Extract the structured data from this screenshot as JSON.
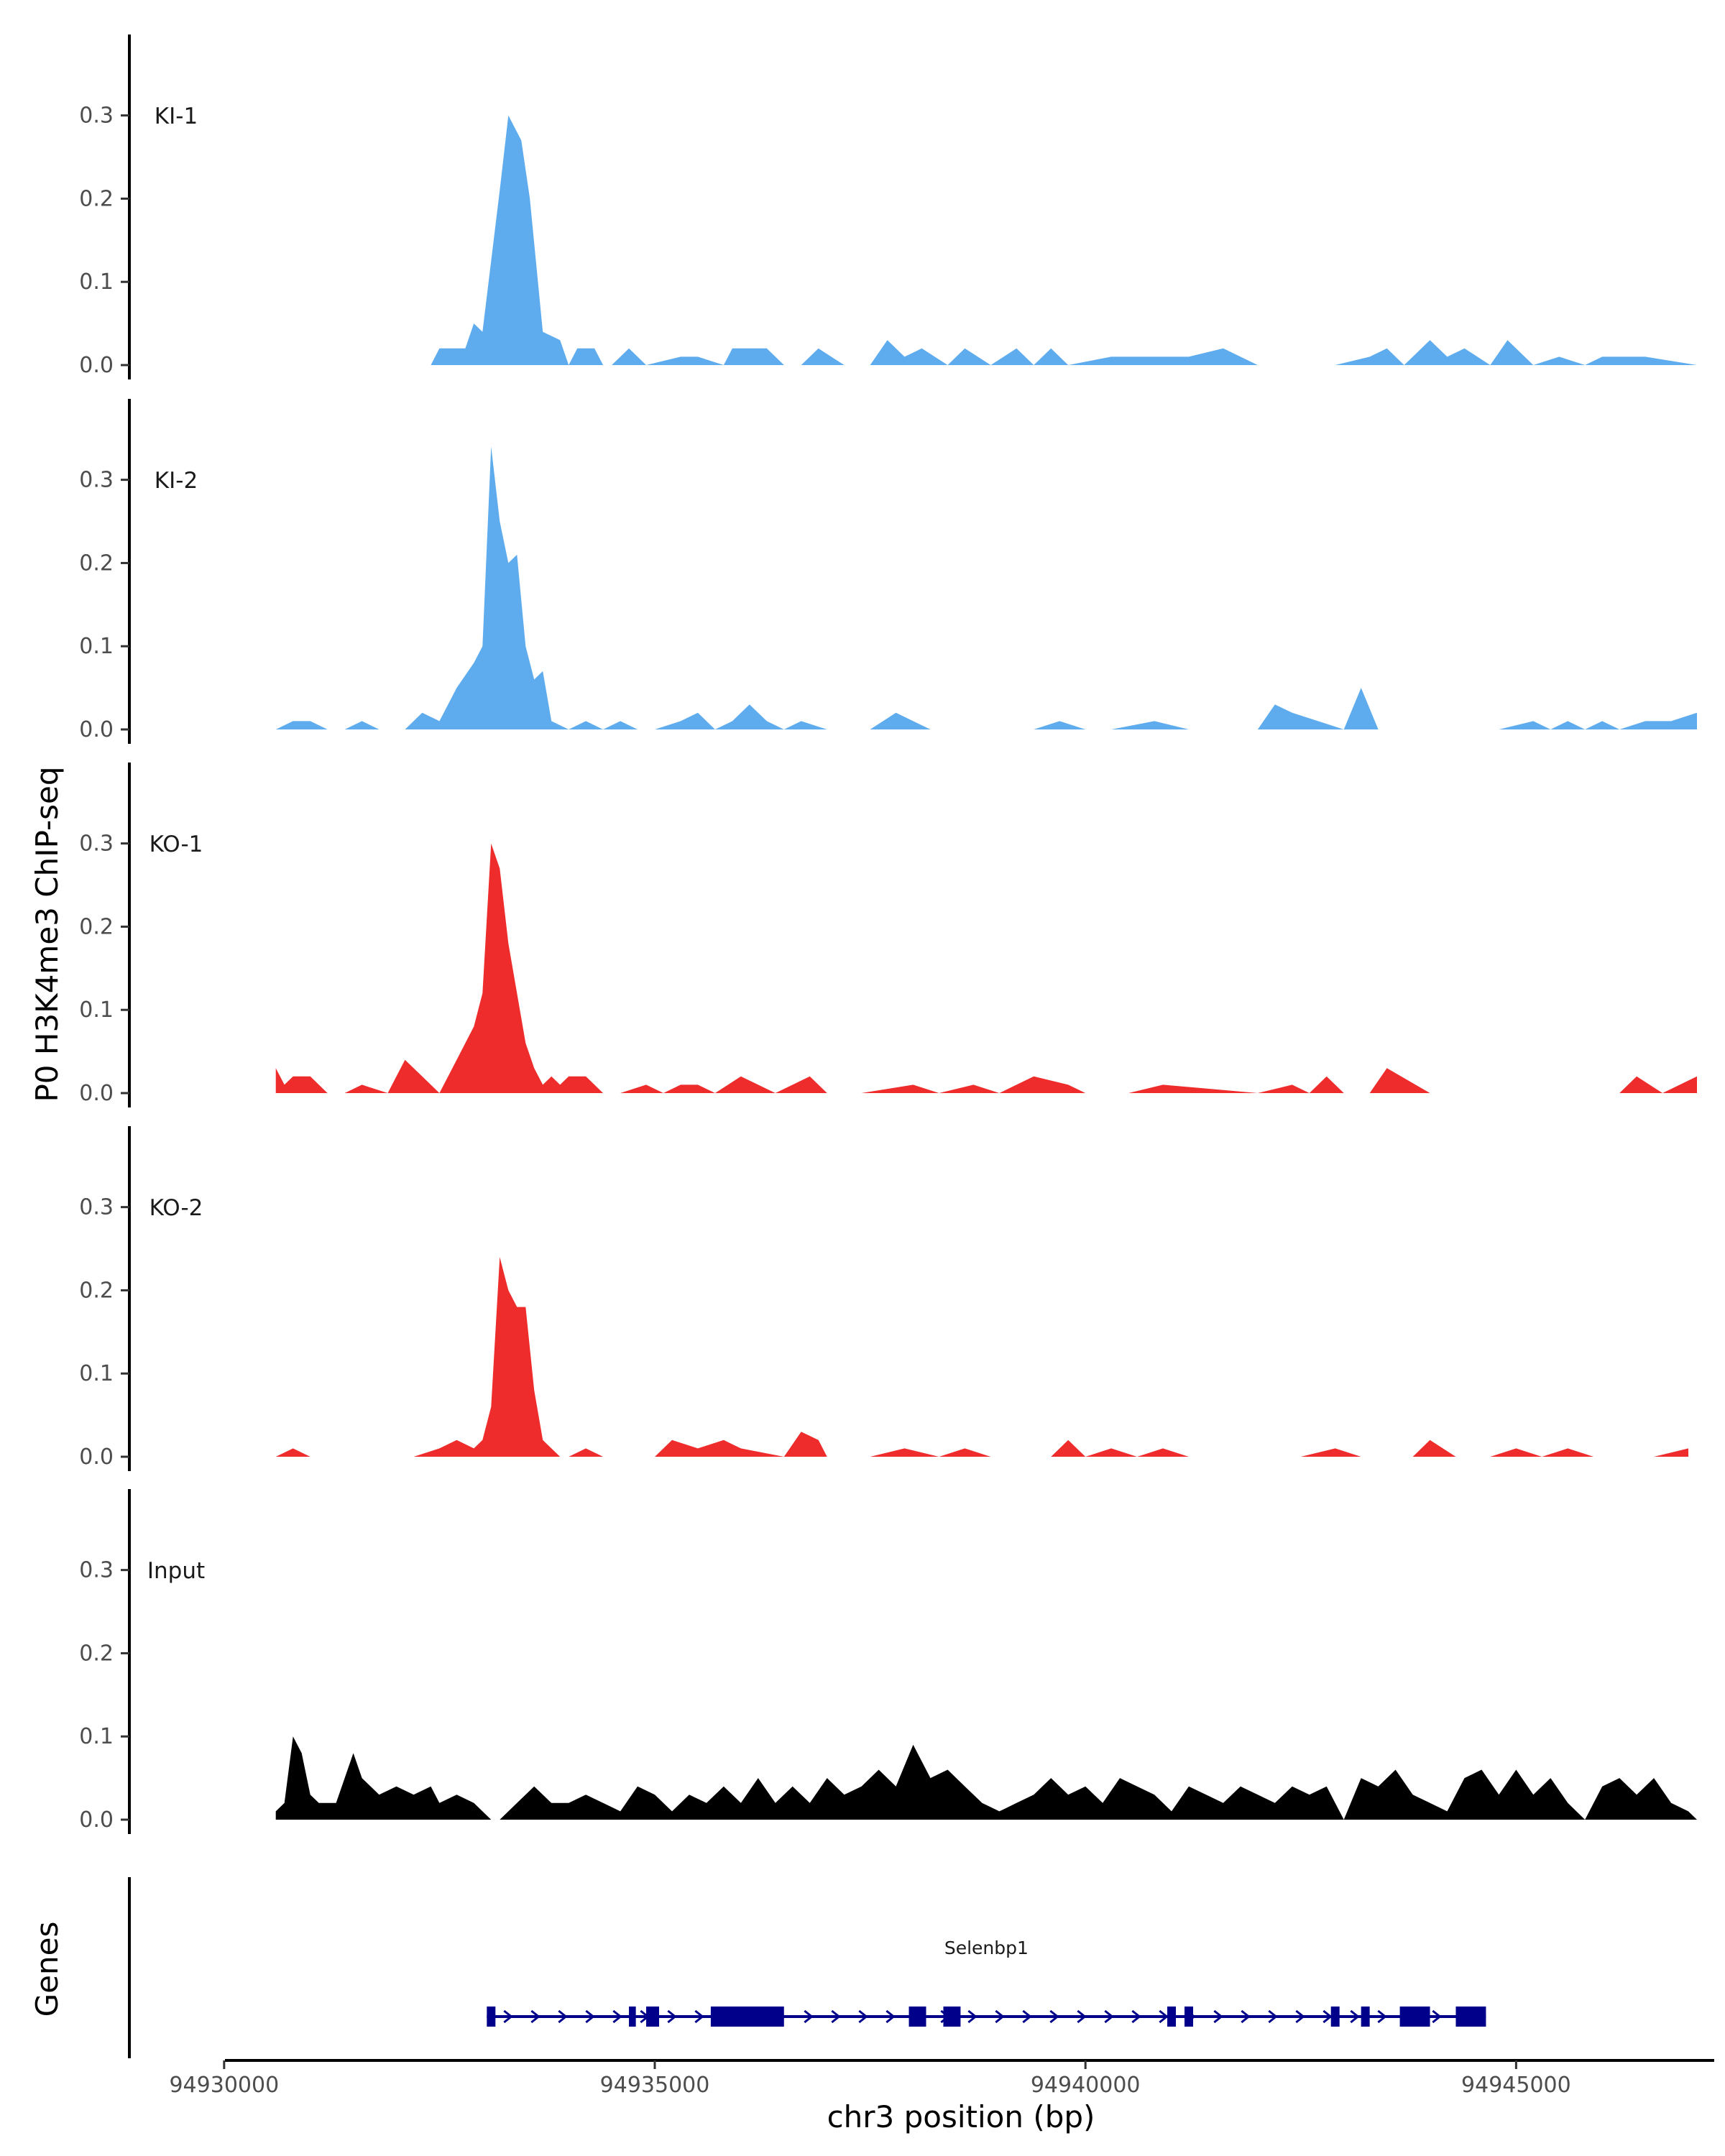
{
  "chart_data": {
    "type": "area",
    "title": "",
    "ylabel": "P0 H3K4me3 ChIP-seq",
    "xlabel": "chr3 position (bp)",
    "xlim": [
      94928900,
      94947300
    ],
    "ylim": [
      0,
      0.38
    ],
    "y_ticks": [
      0.0,
      0.1,
      0.2,
      0.3
    ],
    "y_tick_labels": [
      "0.0",
      "0.1",
      "0.2",
      "0.3"
    ],
    "x_ticks": [
      94930000,
      94935000,
      94940000,
      94945000
    ],
    "x_tick_labels": [
      "94930000",
      "94935000",
      "94940000",
      "94945000"
    ],
    "colors": {
      "KI": "#5eacee",
      "KO": "#ee2c2c",
      "Input": "#000000",
      "gene": "#00008b"
    },
    "tracks": [
      {
        "name": "KI-1",
        "color": "#5eacee",
        "x": [
          94932200,
          94932400,
          94932500,
          94932800,
          94932900,
          94933000,
          94933200,
          94933300,
          94933450,
          94933550,
          94933700,
          94933900,
          94934000,
          94934100,
          94934300,
          94934400,
          94934500,
          94934700,
          94934900,
          94935300,
          94935500,
          94935800,
          94935900,
          94936300,
          94936500,
          94936700,
          94936900,
          94937200,
          94937500,
          94937700,
          94937900,
          94938100,
          94938400,
          94938600,
          94938900,
          94939200,
          94939400,
          94939600,
          94939800,
          94940300,
          94940700,
          94941200,
          94941600,
          94942000,
          94942900,
          94943300,
          94943500,
          94943700,
          94944000,
          94944200,
          94944400,
          94944700,
          94944900,
          94945200,
          94945500,
          94945800,
          94946000,
          94946300,
          94946500,
          94947100
        ],
        "y": [
          0.0,
          0.0,
          0.02,
          0.02,
          0.05,
          0.04,
          0.21,
          0.3,
          0.27,
          0.2,
          0.04,
          0.03,
          0.0,
          0.02,
          0.02,
          0.0,
          0.0,
          0.02,
          0.0,
          0.01,
          0.01,
          0.0,
          0.02,
          0.02,
          0.0,
          0.0,
          0.02,
          0.0,
          0.0,
          0.03,
          0.01,
          0.02,
          0.0,
          0.02,
          0.0,
          0.02,
          0.0,
          0.02,
          0.0,
          0.01,
          0.01,
          0.01,
          0.02,
          0.0,
          0.0,
          0.01,
          0.02,
          0.0,
          0.03,
          0.01,
          0.02,
          0.0,
          0.03,
          0.0,
          0.01,
          0.0,
          0.01,
          0.01,
          0.01,
          0.0
        ]
      },
      {
        "name": "KI-2",
        "color": "#5eacee",
        "x": [
          94930600,
          94930800,
          94931000,
          94931200,
          94931400,
          94931600,
          94931800,
          94932100,
          94932300,
          94932500,
          94932700,
          94932900,
          94933000,
          94933100,
          94933200,
          94933300,
          94933400,
          94933500,
          94933600,
          94933700,
          94933800,
          94934000,
          94934200,
          94934400,
          94934600,
          94934800,
          94935000,
          94935300,
          94935500,
          94935700,
          94935900,
          94936100,
          94936300,
          94936500,
          94936700,
          94937000,
          94937500,
          94937800,
          94938200,
          94938400,
          94938800,
          94939400,
          94939700,
          94940000,
          94940300,
          94940800,
          94941200,
          94941600,
          94942000,
          94942200,
          94942400,
          94942700,
          94943000,
          94943200,
          94943400,
          94943600,
          94944000,
          94944400,
          94944800,
          94945200,
          94945400,
          94945600,
          94945800,
          94946000,
          94946200,
          94946500,
          94946800,
          94947100
        ],
        "y": [
          0.0,
          0.01,
          0.01,
          0.0,
          0.0,
          0.01,
          0.0,
          0.0,
          0.02,
          0.01,
          0.05,
          0.08,
          0.1,
          0.34,
          0.25,
          0.2,
          0.21,
          0.1,
          0.06,
          0.07,
          0.01,
          0.0,
          0.01,
          0.0,
          0.01,
          0.0,
          0.0,
          0.01,
          0.02,
          0.0,
          0.01,
          0.03,
          0.01,
          0.0,
          0.01,
          0.0,
          0.0,
          0.02,
          0.0,
          0.0,
          0.0,
          0.0,
          0.01,
          0.0,
          0.0,
          0.01,
          0.0,
          0.0,
          0.0,
          0.03,
          0.02,
          0.01,
          0.0,
          0.05,
          0.0,
          0.0,
          0.0,
          0.0,
          0.0,
          0.01,
          0.0,
          0.01,
          0.0,
          0.01,
          0.0,
          0.01,
          0.01,
          0.02
        ]
      },
      {
        "name": "KO-1",
        "color": "#ee2c2c",
        "x": [
          94930600,
          94930700,
          94930800,
          94931000,
          94931200,
          94931400,
          94931600,
          94931900,
          94932000,
          94932100,
          94932300,
          94932500,
          94932700,
          94932900,
          94933000,
          94933100,
          94933200,
          94933300,
          94933400,
          94933500,
          94933600,
          94933700,
          94933800,
          94933900,
          94934000,
          94934200,
          94934400,
          94934600,
          94934900,
          94935100,
          94935300,
          94935500,
          94935700,
          94936000,
          94936400,
          94936800,
          94937000,
          94937400,
          94938000,
          94938300,
          94938700,
          94939000,
          94939400,
          94939800,
          94940000,
          94940500,
          94940900,
          94942000,
          94942400,
          94942600,
          94942800,
          94943000,
          94943300,
          94943500,
          94944000,
          94946200,
          94946400,
          94946700,
          94946900,
          94947100
        ],
        "y": [
          0.03,
          0.01,
          0.02,
          0.02,
          0.0,
          0.0,
          0.01,
          0.0,
          0.02,
          0.04,
          0.02,
          0.0,
          0.04,
          0.08,
          0.12,
          0.3,
          0.27,
          0.18,
          0.12,
          0.06,
          0.03,
          0.01,
          0.02,
          0.01,
          0.02,
          0.02,
          0.0,
          0.0,
          0.01,
          0.0,
          0.01,
          0.01,
          0.0,
          0.02,
          0.0,
          0.02,
          0.0,
          0.0,
          0.01,
          0.0,
          0.01,
          0.0,
          0.02,
          0.01,
          0.0,
          0.0,
          0.01,
          0.0,
          0.01,
          0.0,
          0.02,
          0.0,
          0.0,
          0.03,
          0.0,
          0.0,
          0.02,
          0.0,
          0.01,
          0.02
        ]
      },
      {
        "name": "KO-2",
        "color": "#ee2c2c",
        "x": [
          94930600,
          94930800,
          94931000,
          94931400,
          94931700,
          94932000,
          94932200,
          94932500,
          94932700,
          94932900,
          94933000,
          94933100,
          94933200,
          94933300,
          94933400,
          94933500,
          94933600,
          94933700,
          94933800,
          94933900,
          94934000,
          94934200,
          94934400,
          94934600,
          94935000,
          94935200,
          94935500,
          94935800,
          94936000,
          94936500,
          94936700,
          94936900,
          94937000,
          94937500,
          94937900,
          94938300,
          94938600,
          94938900,
          94939200,
          94939600,
          94939800,
          94940000,
          94940300,
          94940600,
          94940900,
          94941200,
          94941600,
          94942000,
          94942500,
          94942900,
          94943200,
          94943500,
          94943800,
          94944000,
          94944300,
          94944700,
          94945000,
          94945300,
          94945600,
          94945900,
          94946200,
          94946600,
          94947000
        ],
        "y": [
          0.0,
          0.01,
          0.0,
          0.0,
          0.0,
          0.0,
          0.0,
          0.01,
          0.02,
          0.01,
          0.02,
          0.06,
          0.24,
          0.2,
          0.18,
          0.18,
          0.08,
          0.02,
          0.01,
          0.0,
          0.0,
          0.01,
          0.0,
          0.0,
          0.0,
          0.02,
          0.01,
          0.02,
          0.01,
          0.0,
          0.03,
          0.02,
          0.0,
          0.0,
          0.01,
          0.0,
          0.01,
          0.0,
          0.0,
          0.0,
          0.02,
          0.0,
          0.01,
          0.0,
          0.01,
          0.0,
          0.0,
          0.0,
          0.0,
          0.01,
          0.0,
          0.0,
          0.0,
          0.02,
          0.0,
          0.0,
          0.01,
          0.0,
          0.01,
          0.0,
          0.0,
          0.0,
          0.01
        ]
      },
      {
        "name": "Input",
        "color": "#000000",
        "x": [
          94930600,
          94930700,
          94930800,
          94930900,
          94931000,
          94931100,
          94931300,
          94931500,
          94931600,
          94931800,
          94932000,
          94932200,
          94932400,
          94932500,
          94932700,
          94932900,
          94933100,
          94933200,
          94933400,
          94933600,
          94933700,
          94933800,
          94934000,
          94934200,
          94934400,
          94934600,
          94934800,
          94935000,
          94935200,
          94935400,
          94935600,
          94935800,
          94936000,
          94936200,
          94936400,
          94936600,
          94936800,
          94937000,
          94937200,
          94937400,
          94937600,
          94937800,
          94938000,
          94938200,
          94938400,
          94938600,
          94938800,
          94939000,
          94939200,
          94939400,
          94939600,
          94939800,
          94940000,
          94940200,
          94940400,
          94940600,
          94940800,
          94941000,
          94941200,
          94941400,
          94941600,
          94941800,
          94942000,
          94942200,
          94942400,
          94942600,
          94942800,
          94943000,
          94943200,
          94943400,
          94943600,
          94943800,
          94944000,
          94944200,
          94944400,
          94944600,
          94944800,
          94945000,
          94945200,
          94945400,
          94945600,
          94945800,
          94946000,
          94946200,
          94946400,
          94946600,
          94946800,
          94947000,
          94947100
        ],
        "y": [
          0.01,
          0.02,
          0.1,
          0.08,
          0.03,
          0.02,
          0.02,
          0.08,
          0.05,
          0.03,
          0.04,
          0.03,
          0.04,
          0.02,
          0.03,
          0.02,
          0.0,
          0.0,
          0.02,
          0.04,
          0.03,
          0.02,
          0.02,
          0.03,
          0.02,
          0.01,
          0.04,
          0.03,
          0.01,
          0.03,
          0.02,
          0.04,
          0.02,
          0.05,
          0.02,
          0.04,
          0.02,
          0.05,
          0.03,
          0.04,
          0.06,
          0.04,
          0.09,
          0.05,
          0.06,
          0.04,
          0.02,
          0.01,
          0.02,
          0.03,
          0.05,
          0.03,
          0.04,
          0.02,
          0.05,
          0.04,
          0.03,
          0.01,
          0.04,
          0.03,
          0.02,
          0.04,
          0.03,
          0.02,
          0.04,
          0.03,
          0.04,
          0.0,
          0.05,
          0.04,
          0.06,
          0.03,
          0.02,
          0.01,
          0.05,
          0.06,
          0.03,
          0.06,
          0.03,
          0.05,
          0.02,
          0.0,
          0.04,
          0.05,
          0.03,
          0.05,
          0.02,
          0.01,
          0.0
        ]
      }
    ],
    "genes": {
      "track_label": "Genes",
      "items": [
        {
          "name": "Selenbp1",
          "strand": "+",
          "start": 94933050,
          "end": 94944650,
          "exons": [
            [
              94933050,
              94933150
            ],
            [
              94934700,
              94934780
            ],
            [
              94934900,
              94935050
            ],
            [
              94935650,
              94936500
            ],
            [
              94937950,
              94938150
            ],
            [
              94938350,
              94938550
            ],
            [
              94940950,
              94941050
            ],
            [
              94941150,
              94941250
            ],
            [
              94942850,
              94942950
            ],
            [
              94943200,
              94943300
            ],
            [
              94943650,
              94944000
            ],
            [
              94944300,
              94944650
            ]
          ]
        }
      ]
    }
  }
}
